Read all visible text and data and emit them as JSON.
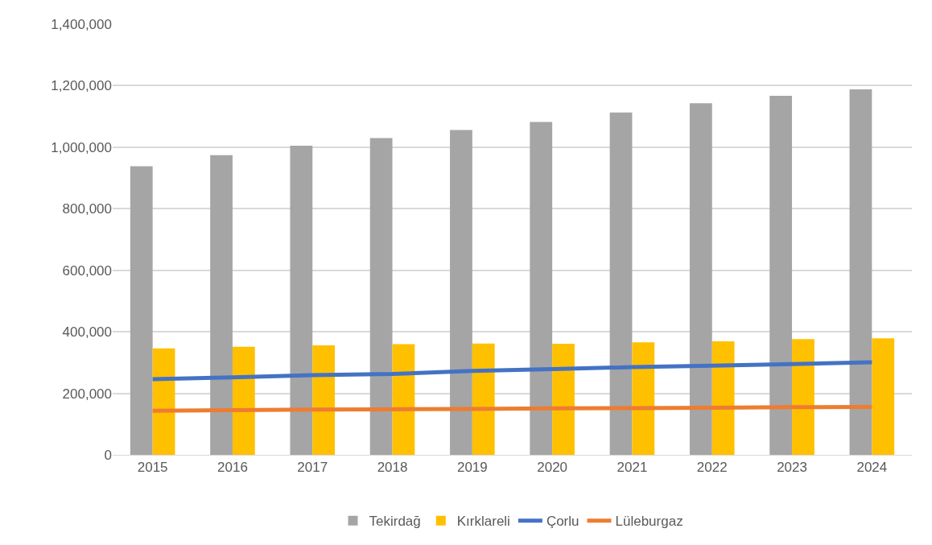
{
  "chart_data": {
    "type": "bar",
    "categories": [
      "2015",
      "2016",
      "2017",
      "2018",
      "2019",
      "2020",
      "2021",
      "2022",
      "2023",
      "2024"
    ],
    "series": [
      {
        "name": "Tekirdağ",
        "color": "#a5a5a5",
        "values": [
          938000,
          974000,
          1005000,
          1030000,
          1056000,
          1082000,
          1113000,
          1143000,
          1167000,
          1188000
        ]
      },
      {
        "name": "Kırklareli",
        "color": "#ffc000",
        "values": [
          346000,
          351000,
          356000,
          360000,
          362000,
          361000,
          366000,
          369000,
          376000,
          379000
        ]
      },
      {
        "name": "Çorlu",
        "type": "line",
        "color": "#4472c4",
        "values": [
          246000,
          252000,
          259000,
          263000,
          273000,
          279000,
          285000,
          290000,
          295000,
          301000
        ]
      },
      {
        "name": "Lüleburgaz",
        "type": "line",
        "color": "#ed7d31",
        "values": [
          143000,
          145000,
          147000,
          148000,
          149000,
          151000,
          152000,
          153000,
          155000,
          156000
        ]
      }
    ],
    "ylim": [
      0,
      1400000
    ],
    "yticks": [
      {
        "value": 0,
        "label": "0"
      },
      {
        "value": 200000,
        "label": "200,000"
      },
      {
        "value": 400000,
        "label": "400,000"
      },
      {
        "value": 600000,
        "label": "600,000"
      },
      {
        "value": 800000,
        "label": "800,000"
      },
      {
        "value": 1000000,
        "label": "1,000,000"
      },
      {
        "value": 1200000,
        "label": "1,200,000"
      },
      {
        "value": 1400000,
        "label": "1,400,000"
      }
    ],
    "grid": "y",
    "legend": "bottom",
    "marker": "none",
    "line_style": "solid"
  }
}
